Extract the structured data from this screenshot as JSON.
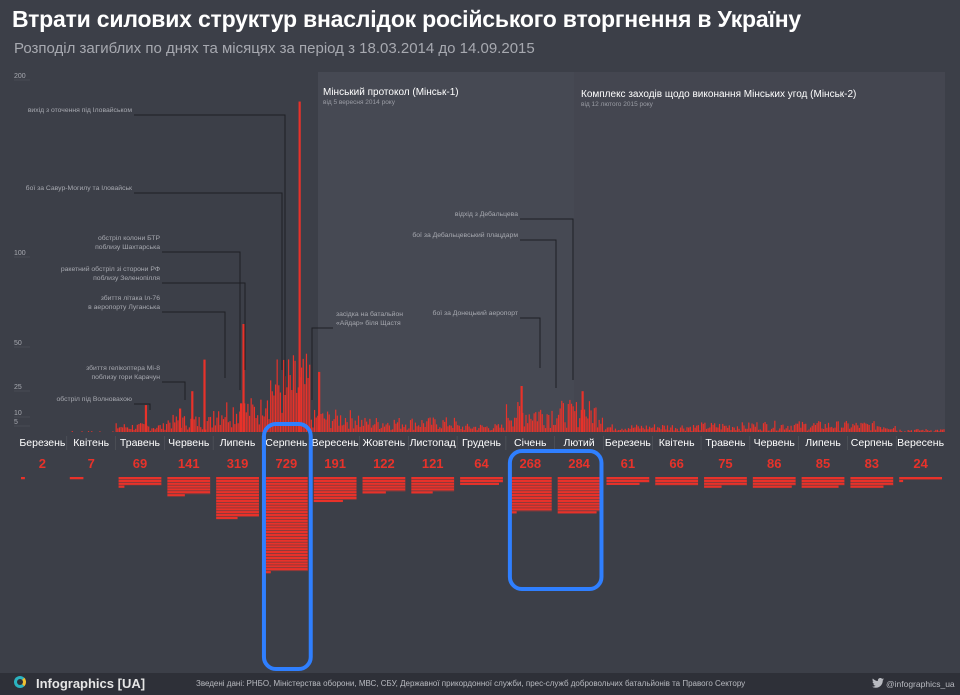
{
  "header": {
    "title": "Втрати силових структур внаслідок російського вторгнення в Україну",
    "subtitle": "Розподіл загиблих по днях та місяцях за період з 18.03.2014 до 14.09.2015"
  },
  "chart_data": {
    "type": "bar",
    "title": "Втрати силових структур внаслідок російського вторгнення в Україну",
    "subtitle": "Розподіл загиблих по днях та місяцях за період з 18.03.2014 до 14.09.2015",
    "ylim": [
      0,
      200
    ],
    "yticks": [
      0,
      5,
      10,
      25,
      50,
      100,
      200
    ],
    "colors": {
      "bars": "#e8322a",
      "text": "#e8322a",
      "highlight": "#2f7fff",
      "band": "#4a4d57",
      "month_label": "#ffffff"
    },
    "months": [
      "Березень",
      "Квітень",
      "Травень",
      "Червень",
      "Липень",
      "Серпень",
      "Вересень",
      "Жовтень",
      "Листопад",
      "Грудень",
      "Січень",
      "Лютий",
      "Березень",
      "Квітень",
      "Травень",
      "Червень",
      "Липень",
      "Серпень",
      "Вересень"
    ],
    "monthly_totals": [
      2,
      7,
      69,
      141,
      319,
      729,
      191,
      122,
      121,
      64,
      268,
      284,
      61,
      66,
      75,
      86,
      85,
      83,
      24
    ],
    "highlighted_months": [
      "Серпень",
      "Січень + Лютий"
    ],
    "daily_peaks": [
      {
        "month": "Травень",
        "value": 14
      },
      {
        "month": "Червень",
        "value": 12
      },
      {
        "month": "Червень",
        "value": 22
      },
      {
        "month": "Червень",
        "value": 40
      },
      {
        "month": "Липень",
        "value": 60
      },
      {
        "month": "Липень",
        "value": 15
      },
      {
        "month": "Серпень",
        "value": 30
      },
      {
        "month": "Серпень",
        "value": 185
      },
      {
        "month": "Вересень",
        "value": 33
      },
      {
        "month": "Січень",
        "value": 25
      },
      {
        "month": "Лютий",
        "value": 22
      }
    ],
    "periods": [
      {
        "label": "Мінський протокол (Мінськ-1)",
        "sublabel": "від 5 вересня 2014 року"
      },
      {
        "label": "Комплекс заходів щодо виконання Мінських угод (Мінськ-2)",
        "sublabel": "від 12 лютого 2015 року"
      }
    ],
    "annotations": [
      {
        "text": "вихід з оточення під Іловайськом"
      },
      {
        "text": "бої за Савур-Могилу та Іловайськ"
      },
      {
        "text": "обстріл колони БТР\nпоблизу Шахтарська"
      },
      {
        "text": "ракетний обстріл зі сторони РФ\nпоблизу Зеленопілля"
      },
      {
        "text": "збиття літака Іл-76\nв аеропорту Луганська"
      },
      {
        "text": "збиття гелікоптера Мі-8\nпоблизу гори Карачун"
      },
      {
        "text": "обстріл під Волновахою"
      },
      {
        "text": "засідка на батальйон\n«Айдар» біля Щастя"
      },
      {
        "text": "відхід з Дебальцева"
      },
      {
        "text": "бої за Дебальцевський плацдарм"
      },
      {
        "text": "бої за Донецький аеропорт"
      }
    ]
  },
  "footer": {
    "logo": "Infographics [UA]",
    "sources": "Зведені дані: РНБО, Міністерства оборони, МВС, СБУ, Державної прикордонної служби, прес-служб добровольчих батальйонів та Правого Сектору",
    "twitter": "@infographics_ua"
  }
}
